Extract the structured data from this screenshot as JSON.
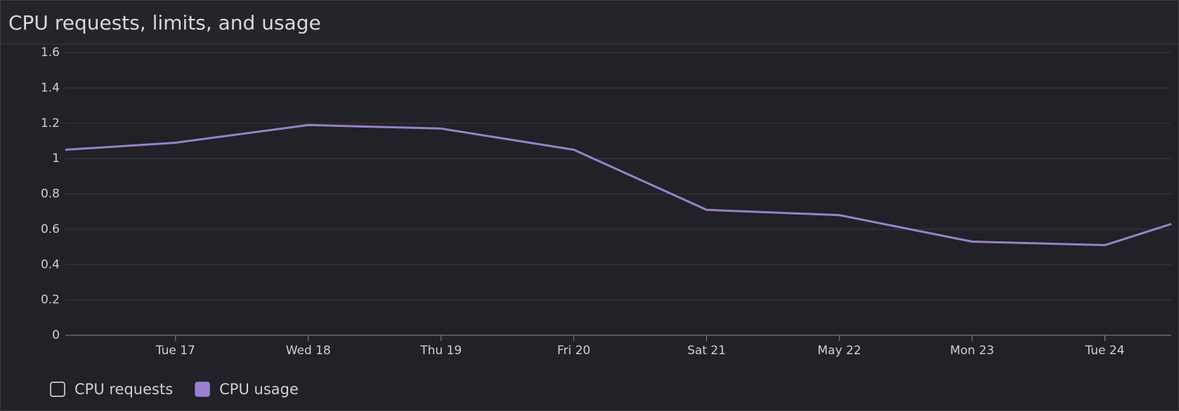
{
  "chart_data": {
    "type": "line",
    "title": "CPU requests, limits, and usage",
    "x": [
      16.17,
      17,
      18,
      19,
      20,
      21,
      22,
      23,
      24,
      24.5
    ],
    "xlim": [
      16.17,
      24.5
    ],
    "xticks": [
      {
        "value": 17,
        "label": "Tue 17"
      },
      {
        "value": 18,
        "label": "Wed 18"
      },
      {
        "value": 19,
        "label": "Thu 19"
      },
      {
        "value": 20,
        "label": "Fri 20"
      },
      {
        "value": 21,
        "label": "Sat 21"
      },
      {
        "value": 22,
        "label": "May 22"
      },
      {
        "value": 23,
        "label": "Mon 23"
      },
      {
        "value": 24,
        "label": "Tue 24"
      }
    ],
    "ylim": [
      0,
      1.6
    ],
    "yticks": [
      0,
      0.2,
      0.4,
      0.6,
      0.8,
      1,
      1.2,
      1.4,
      1.6
    ],
    "grid": true,
    "series": [
      {
        "name": "CPU requests",
        "color": "#e6e6e6",
        "hidden": true,
        "values": [
          null,
          null,
          null,
          null,
          null,
          null,
          null,
          null,
          null,
          null
        ]
      },
      {
        "name": "CPU usage",
        "color": "#9a7fd1",
        "values": [
          1.05,
          1.09,
          1.19,
          1.17,
          1.05,
          0.71,
          0.68,
          0.53,
          0.51,
          0.63
        ]
      }
    ]
  }
}
